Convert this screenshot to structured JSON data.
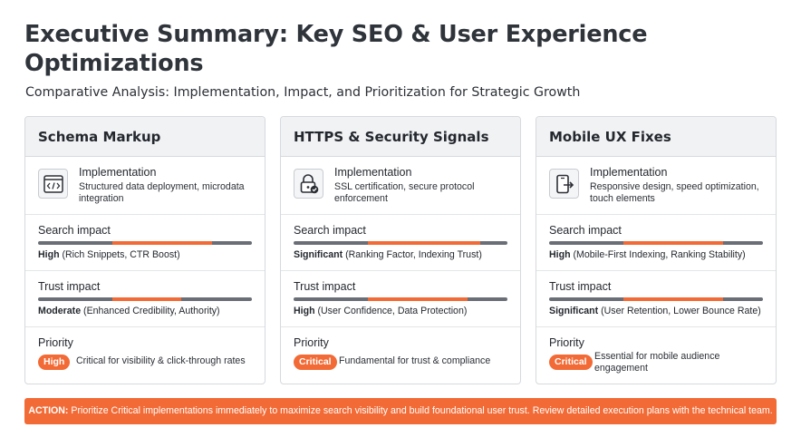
{
  "header": {
    "title": "Executive Summary: Key SEO & User Experience Optimizations",
    "subtitle": "Comparative Analysis: Implementation, Impact, and Prioritization for Strategic Growth"
  },
  "colors": {
    "accent": "#f26a35",
    "bar_track": "#6a6f77",
    "card_header": "#f1f2f4"
  },
  "cards": [
    {
      "title": "Schema Markup",
      "icon": "code-window-icon",
      "implementation": {
        "label": "Implementation",
        "description": "Structured data deployment, microdata integration"
      },
      "search": {
        "label": "Search impact",
        "level": "High",
        "detail": "(Rich Snippets, CTR Boost)"
      },
      "trust": {
        "label": "Trust impact",
        "level": "Moderate",
        "detail": "(Enhanced Credibility, Authority)"
      },
      "priority": {
        "label": "Priority",
        "badge": "High",
        "description": "Critical for visibility & click-through rates"
      }
    },
    {
      "title": "HTTPS & Security Signals",
      "icon": "secure-lock-icon",
      "implementation": {
        "label": "Implementation",
        "description": "SSL certification, secure protocol enforcement"
      },
      "search": {
        "label": "Search impact",
        "level": "Significant",
        "detail": "(Ranking Factor, Indexing Trust)"
      },
      "trust": {
        "label": "Trust impact",
        "level": "High",
        "detail": "(User Confidence, Data Protection)"
      },
      "priority": {
        "label": "Priority",
        "badge": "Critical",
        "description": "Fundamental for trust & compliance"
      }
    },
    {
      "title": "Mobile UX Fixes",
      "icon": "mobile-device-icon",
      "implementation": {
        "label": "Implementation",
        "description": "Responsive design, speed optimization, touch elements"
      },
      "search": {
        "label": "Search impact",
        "level": "High",
        "detail": "(Mobile-First Indexing, Ranking Stability)"
      },
      "trust": {
        "label": "Trust impact",
        "level": "Significant",
        "detail": "(User Retention, Lower Bounce Rate)"
      },
      "priority": {
        "label": "Priority",
        "badge": "Critical",
        "description": "Essential for mobile audience engagement"
      }
    }
  ],
  "action": {
    "prefix": "ACTION:",
    "text": " Prioritize Critical implementations immediately to maximize search visibility and build foundational user trust. Review detailed execution plans with the technical team."
  }
}
